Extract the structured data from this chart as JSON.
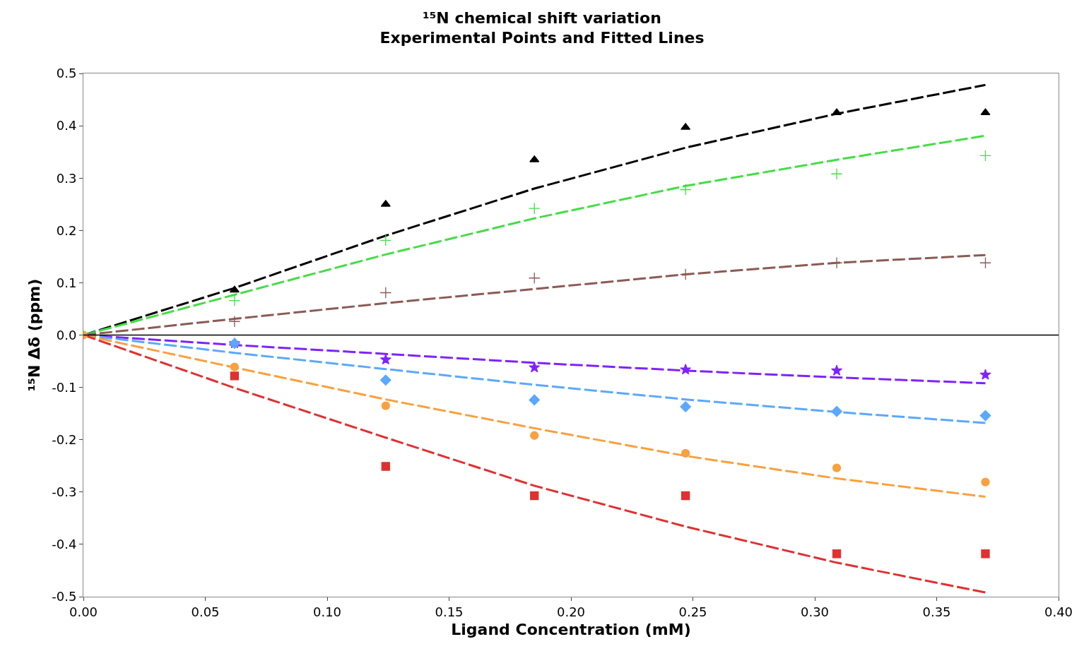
{
  "chart_data": {
    "type": "scatter",
    "title": "¹⁵N chemical shift variation",
    "subtitle": "Experimental Points and Fitted Lines",
    "xlabel": "Ligand Concentration (mM)",
    "ylabel": "¹⁵N Δδ (ppm)",
    "x": [
      0,
      0.062,
      0.124,
      0.185,
      0.247,
      0.309,
      0.37
    ],
    "series": [
      {
        "type": "line",
        "line_style": "dashed",
        "marker": "none",
        "color": "#000000",
        "values": [
          0,
          0.09,
          0.19,
          0.28,
          0.358,
          0.423,
          0.478
        ]
      },
      {
        "type": "line",
        "line_style": "dashed",
        "marker": "none",
        "color": "#44dd44",
        "values": [
          0,
          0.077,
          0.154,
          0.223,
          0.285,
          0.335,
          0.381
        ]
      },
      {
        "type": "line",
        "line_style": "dashed",
        "marker": "none",
        "color": "#8b5a55",
        "values": [
          0,
          0.031,
          0.061,
          0.088,
          0.116,
          0.138,
          0.153
        ]
      },
      {
        "type": "line",
        "line_style": "dashed",
        "marker": "none",
        "color": "#7f22ff",
        "values": [
          0,
          -0.019,
          -0.036,
          -0.053,
          -0.068,
          -0.081,
          -0.092
        ]
      },
      {
        "type": "line",
        "line_style": "dashed",
        "marker": "none",
        "color": "#5aa8ff",
        "values": [
          0,
          -0.034,
          -0.065,
          -0.095,
          -0.123,
          -0.147,
          -0.168
        ]
      },
      {
        "type": "line",
        "line_style": "dashed",
        "marker": "none",
        "color": "#f9a03f",
        "values": [
          0,
          -0.062,
          -0.123,
          -0.178,
          -0.231,
          -0.274,
          -0.309
        ]
      },
      {
        "type": "line",
        "line_style": "dashed",
        "marker": "none",
        "color": "#e03030",
        "values": [
          0,
          -0.101,
          -0.196,
          -0.288,
          -0.366,
          -0.435,
          -0.492
        ]
      },
      {
        "marker": "triangle",
        "color": "#000000",
        "values": [
          null,
          0.086,
          0.25,
          0.335,
          0.397,
          0.425,
          0.425
        ]
      },
      {
        "marker": "cross",
        "color": "#44dd44",
        "values": [
          null,
          0.066,
          0.181,
          0.242,
          0.278,
          0.308,
          0.343
        ]
      },
      {
        "marker": "cross",
        "color": "#8b5a55",
        "values": [
          null,
          0.026,
          0.081,
          0.109,
          0.116,
          0.138,
          0.138
        ]
      },
      {
        "marker": "star",
        "color": "#7f22ff",
        "values": [
          null,
          -0.016,
          -0.047,
          -0.062,
          -0.066,
          -0.068,
          -0.076
        ]
      },
      {
        "marker": "diamond",
        "color": "#5aa8ff",
        "values": [
          null,
          -0.016,
          -0.086,
          -0.124,
          -0.137,
          -0.146,
          -0.154
        ]
      },
      {
        "marker": "square",
        "color": "#e03030",
        "values": [
          null,
          -0.078,
          -0.251,
          -0.307,
          -0.307,
          -0.418,
          -0.418
        ]
      },
      {
        "marker": "circle",
        "color": "#f9a03f",
        "values": [
          0,
          -0.061,
          -0.135,
          -0.192,
          -0.226,
          -0.254,
          -0.281
        ]
      }
    ],
    "xlim": [
      0,
      0.4
    ],
    "xticks": [
      {
        "value": 0,
        "label": "0.00"
      },
      {
        "value": 0.05,
        "label": "0.05"
      },
      {
        "value": 0.1,
        "label": "0.10"
      },
      {
        "value": 0.15,
        "label": "0.15"
      },
      {
        "value": 0.2,
        "label": "0.20"
      },
      {
        "value": 0.25,
        "label": "0.25"
      },
      {
        "value": 0.3,
        "label": "0.30"
      },
      {
        "value": 0.35,
        "label": "0.35"
      },
      {
        "value": 0.4,
        "label": "0.40"
      }
    ],
    "ylim": [
      -0.5,
      0.5
    ],
    "yticks": [
      {
        "value": -0.5,
        "label": "-0.5"
      },
      {
        "value": -0.4,
        "label": "-0.4"
      },
      {
        "value": -0.3,
        "label": "-0.3"
      },
      {
        "value": -0.2,
        "label": "-0.2"
      },
      {
        "value": -0.1,
        "label": "-0.1"
      },
      {
        "value": 0,
        "label": "0.0"
      },
      {
        "value": 0.1,
        "label": "0.1"
      },
      {
        "value": 0.2,
        "label": "0.2"
      },
      {
        "value": 0.3,
        "label": "0.3"
      },
      {
        "value": 0.4,
        "label": "0.4"
      },
      {
        "value": 0.5,
        "label": "0.5"
      }
    ],
    "ref_lines": [
      {
        "axis": "y",
        "value": 0,
        "color": "#000000"
      }
    ]
  }
}
